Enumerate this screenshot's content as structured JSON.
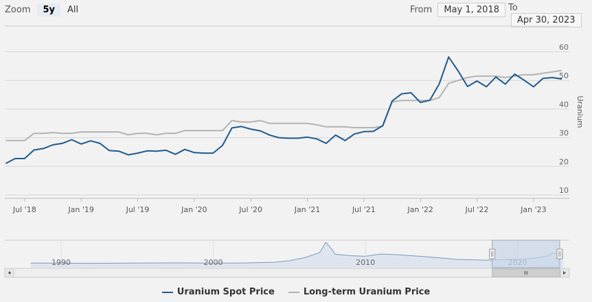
{
  "zoom": {
    "label": "Zoom",
    "buttons": [
      "5y",
      "All"
    ],
    "active": "5y"
  },
  "range": {
    "from_label": "From",
    "from_value": "May 1, 2018",
    "to_label": "To",
    "to_value": "Apr 30, 2023"
  },
  "colors": {
    "spot": "#1f5a8c",
    "longterm": "#b3b3b3",
    "navigator_fill": "#c8d6e8"
  },
  "chart_data": {
    "type": "line",
    "ylabel": "Uranium",
    "y_ticks": [
      10,
      20,
      30,
      40,
      50,
      60
    ],
    "ylim": [
      10,
      62
    ],
    "x_ticks": [
      {
        "label": "Jul '18",
        "x": "2018-07"
      },
      {
        "label": "Jan '19",
        "x": "2019-01"
      },
      {
        "label": "Jul '19",
        "x": "2019-07"
      },
      {
        "label": "Jan '20",
        "x": "2020-01"
      },
      {
        "label": "Jul '20",
        "x": "2020-07"
      },
      {
        "label": "Jan '21",
        "x": "2021-01"
      },
      {
        "label": "Jul '21",
        "x": "2021-07"
      },
      {
        "label": "Jan '22",
        "x": "2022-01"
      },
      {
        "label": "Jul '22",
        "x": "2022-07"
      },
      {
        "label": "Jan '23",
        "x": "2023-01"
      }
    ],
    "x": [
      "2018-05",
      "2018-06",
      "2018-07",
      "2018-08",
      "2018-09",
      "2018-10",
      "2018-11",
      "2018-12",
      "2019-01",
      "2019-02",
      "2019-03",
      "2019-04",
      "2019-05",
      "2019-06",
      "2019-07",
      "2019-08",
      "2019-09",
      "2019-10",
      "2019-11",
      "2019-12",
      "2020-01",
      "2020-02",
      "2020-03",
      "2020-04",
      "2020-05",
      "2020-06",
      "2020-07",
      "2020-08",
      "2020-09",
      "2020-10",
      "2020-11",
      "2020-12",
      "2021-01",
      "2021-02",
      "2021-03",
      "2021-04",
      "2021-05",
      "2021-06",
      "2021-07",
      "2021-08",
      "2021-09",
      "2021-10",
      "2021-11",
      "2021-12",
      "2022-01",
      "2022-02",
      "2022-03",
      "2022-04",
      "2022-05",
      "2022-06",
      "2022-07",
      "2022-08",
      "2022-09",
      "2022-10",
      "2022-11",
      "2022-12",
      "2023-01",
      "2023-02",
      "2023-03",
      "2023-04"
    ],
    "grid": true,
    "series": [
      {
        "name": "Uranium Spot Price",
        "values": [
          21.0,
          22.7,
          22.7,
          25.7,
          26.2,
          27.5,
          28.0,
          29.3,
          27.8,
          28.9,
          28.0,
          25.5,
          25.3,
          24.0,
          24.6,
          25.4,
          25.3,
          25.6,
          24.2,
          25.9,
          24.8,
          24.6,
          24.6,
          27.3,
          33.4,
          33.9,
          33.0,
          32.4,
          30.9,
          30.0,
          29.8,
          29.8,
          30.2,
          29.6,
          28.0,
          30.9,
          29.0,
          31.3,
          32.1,
          32.2,
          34.2,
          42.8,
          45.3,
          45.7,
          42.3,
          43.1,
          48.8,
          58.2,
          53.3,
          47.9,
          49.8,
          47.8,
          51.2,
          48.7,
          52.2,
          50.1,
          47.8,
          50.7,
          51.0,
          50.5
        ]
      },
      {
        "name": "Long-term Uranium Price",
        "values": [
          29.0,
          29.0,
          29.0,
          31.5,
          31.5,
          31.8,
          31.5,
          31.5,
          32.0,
          32.0,
          32.0,
          32.0,
          32.0,
          31.0,
          31.5,
          31.5,
          31.0,
          31.5,
          31.5,
          32.5,
          32.5,
          32.5,
          32.5,
          32.5,
          36.0,
          35.5,
          35.5,
          36.0,
          35.0,
          35.0,
          35.0,
          35.0,
          35.0,
          34.5,
          33.8,
          33.8,
          33.8,
          33.5,
          33.5,
          33.5,
          34.0,
          42.5,
          43.0,
          43.0,
          43.0,
          43.0,
          44.0,
          49.0,
          50.0,
          51.0,
          51.5,
          51.5,
          51.5,
          51.0,
          51.5,
          52.0,
          52.0,
          52.5,
          53.0,
          53.5
        ]
      }
    ],
    "navigator": {
      "x_ticks": [
        "1990",
        "2000",
        "2010",
        "2020"
      ],
      "years": [
        1988,
        1990,
        1992,
        1994,
        1996,
        1998,
        2000,
        2002,
        2004,
        2005,
        2006,
        2007,
        2007.4,
        2007.8,
        2008,
        2009,
        2010,
        2011,
        2012,
        2014,
        2016,
        2018,
        2019,
        2020,
        2021,
        2022,
        2022.3,
        2023
      ],
      "values": [
        9,
        8.5,
        8,
        8.5,
        9.5,
        10,
        8.5,
        9.5,
        13,
        21,
        35,
        60,
        110,
        75,
        52,
        45,
        42,
        53,
        50,
        40,
        27,
        23,
        26,
        27,
        32,
        44,
        58,
        51
      ]
    }
  },
  "legend": [
    {
      "label": "Uranium Spot Price",
      "color": "#1f5a8c"
    },
    {
      "label": "Long-term Uranium Price",
      "color": "#b3b3b3"
    }
  ]
}
